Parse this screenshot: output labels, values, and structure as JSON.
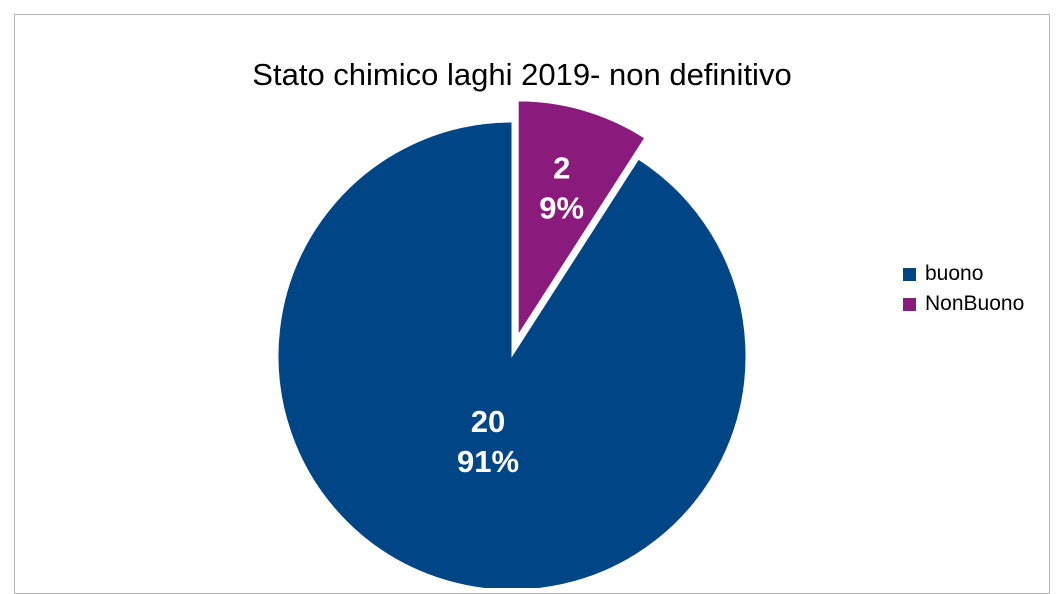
{
  "chart_data": {
    "type": "pie",
    "title": "Stato chimico laghi 2019- non definitivo",
    "categories": [
      "buono",
      "NonBuono"
    ],
    "values": [
      20,
      2
    ],
    "percent_labels": [
      "91%",
      "9%"
    ],
    "colors": [
      "#004586",
      "#8b1a7d"
    ],
    "exploded": [
      false,
      true
    ],
    "legend_position": "right",
    "legend": [
      {
        "label": "buono",
        "color": "#004586"
      },
      {
        "label": "NonBuono",
        "color": "#8b1a7d"
      }
    ]
  }
}
